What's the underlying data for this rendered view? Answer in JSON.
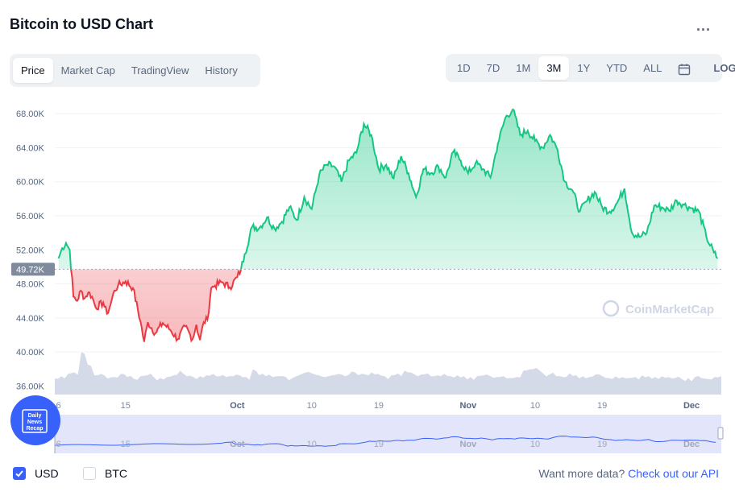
{
  "header": {
    "title": "Bitcoin to USD Chart",
    "more_label": "..."
  },
  "tabs": [
    "Price",
    "Market Cap",
    "TradingView",
    "History"
  ],
  "active_tab": "Price",
  "ranges": [
    "1D",
    "7D",
    "1M",
    "3M",
    "1Y",
    "YTD",
    "ALL"
  ],
  "active_range": "3M",
  "calendar_icon": "calendar-icon",
  "log_label": "LOG",
  "footer": {
    "usd_label": "USD",
    "btc_label": "BTC",
    "more_data_text": "Want more data?",
    "api_link": "Check out our API"
  },
  "watermark": "CoinMarketCap",
  "badge_text": [
    "Daily",
    "News",
    "Recap"
  ],
  "colors": {
    "up_line": "#16c784",
    "down_line": "#ea3943",
    "volume": "#cfd6e4",
    "navigator_fill": "#e3e6fa",
    "navigator_line": "#3861fb",
    "accent": "#3861fb"
  },
  "chart_data": {
    "type": "area",
    "ylim": [
      35000,
      70000
    ],
    "y_ticks": [
      36000,
      40000,
      44000,
      48000,
      52000,
      56000,
      60000,
      64000,
      68000
    ],
    "y_tick_labels": [
      "36.00K",
      "40.00K",
      "44.00K",
      "48.00K",
      "52.00K",
      "56.00K",
      "60.00K",
      "64.00K",
      "68.00K"
    ],
    "baseline": 49720,
    "baseline_label": "49.72K",
    "x_ticks": [
      "6",
      "15",
      "Oct",
      "10",
      "19",
      "Nov",
      "10",
      "19",
      "Dec"
    ],
    "x_tick_days": [
      0,
      9,
      24,
      34,
      43,
      55,
      64,
      73,
      85
    ],
    "x_range_days": [
      -0.5,
      89
    ],
    "series": [
      {
        "days": [
          0,
          0.5,
          1,
          1.5,
          2,
          2.5,
          3,
          3.5,
          4,
          4.5,
          5,
          6,
          6.5,
          7,
          7.5,
          8,
          9,
          10,
          11,
          11.5,
          12,
          13,
          14,
          15,
          16,
          17,
          18,
          18.5,
          19,
          19.5,
          20,
          20.5,
          21,
          22,
          23,
          24,
          24.5,
          25,
          26,
          27,
          28,
          29,
          30,
          31,
          32,
          33,
          34,
          35,
          36,
          37,
          38,
          39,
          40,
          41,
          42,
          43,
          44,
          45,
          46,
          47,
          48,
          49,
          50,
          51,
          52,
          53,
          54,
          55,
          56,
          57,
          58,
          59,
          60,
          61,
          62,
          63,
          64,
          65,
          66,
          67,
          68,
          69,
          70,
          71,
          72,
          73,
          74,
          75,
          76,
          77,
          78,
          79,
          80,
          81,
          82,
          83,
          84,
          85,
          86,
          87,
          88,
          88.5
        ],
        "close": [
          51000,
          52200,
          52800,
          52000,
          46500,
          46000,
          47200,
          46300,
          47000,
          46500,
          45200,
          45800,
          44500,
          45600,
          47200,
          47800,
          48300,
          47500,
          43600,
          41200,
          43500,
          42200,
          43400,
          42600,
          41500,
          43000,
          41500,
          43200,
          41400,
          43500,
          43800,
          47500,
          47800,
          48200,
          47600,
          48800,
          49700,
          51500,
          54700,
          54600,
          55800,
          54500,
          55300,
          57000,
          55500,
          58200,
          56800,
          60800,
          62000,
          61800,
          60000,
          62500,
          63400,
          66800,
          65500,
          61500,
          62000,
          60400,
          63000,
          61000,
          58200,
          61500,
          61000,
          61800,
          60500,
          63500,
          62500,
          61000,
          62200,
          61500,
          60500,
          64500,
          67500,
          68500,
          65500,
          66000,
          64800,
          64000,
          65500,
          63800,
          60000,
          59000,
          56500,
          57800,
          58800,
          57000,
          56500,
          57500,
          59200,
          54000,
          53500,
          54000,
          57200,
          57000,
          56600,
          57800,
          57300,
          56900,
          56500,
          53500,
          51700,
          51000
        ]
      }
    ],
    "volume_approx": [
      0.35,
      0.4,
      0.45,
      0.48,
      0.92,
      0.65,
      0.42,
      0.45,
      0.35,
      0.38,
      0.45,
      0.38,
      0.34,
      0.4,
      0.42,
      0.38,
      0.36,
      0.38,
      0.42,
      0.52,
      0.4,
      0.38,
      0.4,
      0.42,
      0.45,
      0.4,
      0.38,
      0.4,
      0.42,
      0.38,
      0.55,
      0.42,
      0.4,
      0.38,
      0.4,
      0.38,
      0.36,
      0.42,
      0.48,
      0.46,
      0.42,
      0.38,
      0.42,
      0.45,
      0.4,
      0.5,
      0.42,
      0.44,
      0.48,
      0.45,
      0.4,
      0.42,
      0.46,
      0.52,
      0.48,
      0.4,
      0.44,
      0.4,
      0.42,
      0.45,
      0.4,
      0.42,
      0.4,
      0.38,
      0.4,
      0.42,
      0.4,
      0.38,
      0.4,
      0.36,
      0.38,
      0.52,
      0.55,
      0.58,
      0.46,
      0.44,
      0.4,
      0.38,
      0.46,
      0.42,
      0.4,
      0.38,
      0.44,
      0.4,
      0.36,
      0.4,
      0.38,
      0.36,
      0.38,
      0.42,
      0.4,
      0.38,
      0.4,
      0.38,
      0.36,
      0.34,
      0.36,
      0.38,
      0.36,
      0.34,
      0.38,
      0.4
    ],
    "grid": "horizontal",
    "navigator": true
  }
}
